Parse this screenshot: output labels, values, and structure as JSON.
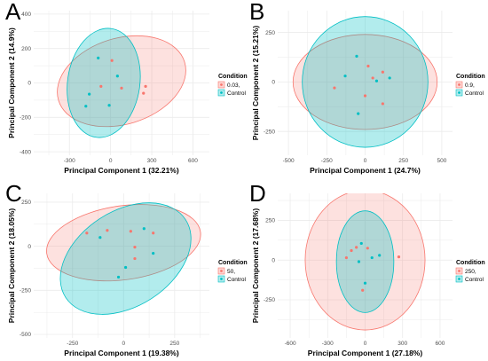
{
  "colors": {
    "treatment": "#F8766D",
    "control": "#00BFC4",
    "grid": "#ebebeb",
    "text": "#4d4d4d"
  },
  "chart_data": [
    {
      "panel": "A",
      "type": "scatter",
      "xlabel": "Principal Component 1 (32.21%)",
      "ylabel": "Principal Component 2 (14.9%)",
      "xlim": [
        -560,
        720
      ],
      "ylim": [
        -420,
        420
      ],
      "xticks": [
        -300,
        0,
        300,
        600
      ],
      "yticks": [
        -400,
        -200,
        0,
        200,
        400
      ],
      "legend": {
        "title": "Condition",
        "placement": "right",
        "labels": [
          "0.03,",
          "Control"
        ]
      },
      "series": [
        {
          "group": "treatment",
          "points": [
            [
              10,
              130
            ],
            [
              80,
              -30
            ],
            [
              -70,
              -20
            ],
            [
              240,
              -60
            ],
            [
              255,
              -20
            ]
          ],
          "ellipse": {
            "cx": 80,
            "cy": 10,
            "rx": 480,
            "ry": 250,
            "angle": -17
          }
        },
        {
          "group": "control",
          "points": [
            [
              -90,
              145
            ],
            [
              50,
              40
            ],
            [
              -155,
              -65
            ],
            [
              -180,
              -135
            ],
            [
              -10,
              -130
            ]
          ],
          "ellipse": {
            "cx": -50,
            "cy": 0,
            "rx": 400,
            "ry": 210,
            "angle": -82
          }
        }
      ]
    },
    {
      "panel": "B",
      "type": "scatter",
      "xlabel": "Principal Component 1 (24.7%)",
      "ylabel": "Principal Component 2 (15.21%)",
      "xlim": [
        -570,
        570
      ],
      "ylim": [
        -370,
        360
      ],
      "xticks": [
        -500,
        -250,
        0,
        250,
        500
      ],
      "yticks": [
        -250,
        0,
        250
      ],
      "legend": {
        "title": "Condition",
        "placement": "right",
        "labels": [
          "0.9,",
          "Control"
        ]
      },
      "series": [
        {
          "group": "treatment",
          "points": [
            [
              20,
              80
            ],
            [
              115,
              50
            ],
            [
              -200,
              -30
            ],
            [
              0,
              -70
            ],
            [
              115,
              -110
            ],
            [
              50,
              20
            ]
          ],
          "ellipse": {
            "cx": 0,
            "cy": 0,
            "rx": 470,
            "ry": 240,
            "angle": 0
          }
        },
        {
          "group": "control",
          "points": [
            [
              -55,
              130
            ],
            [
              -130,
              30
            ],
            [
              75,
              5
            ],
            [
              160,
              20
            ],
            [
              -45,
              -160
            ]
          ],
          "ellipse": {
            "cx": 0,
            "cy": 0,
            "rx": 410,
            "ry": 330,
            "angle": 0
          }
        }
      ]
    },
    {
      "panel": "C",
      "type": "scatter",
      "xlabel": "Principal Component 1 (19.38%)",
      "ylabel": "Principal Component 2 (18.05%)",
      "xlim": [
        -440,
        420
      ],
      "ylim": [
        -520,
        300
      ],
      "xticks": [
        -250,
        0,
        250
      ],
      "yticks": [
        -500,
        -250,
        0,
        250
      ],
      "legend": {
        "title": "Condition",
        "placement": "right",
        "labels": [
          "50,",
          "Control"
        ]
      },
      "series": [
        {
          "group": "treatment",
          "points": [
            [
              -180,
              75
            ],
            [
              -80,
              90
            ],
            [
              55,
              -5
            ],
            [
              145,
              75
            ],
            [
              55,
              -70
            ],
            [
              35,
              85
            ]
          ],
          "ellipse": {
            "cx": 0,
            "cy": 20,
            "rx": 380,
            "ry": 210,
            "angle": -8
          }
        },
        {
          "group": "control",
          "points": [
            [
              -115,
              50
            ],
            [
              100,
              100
            ],
            [
              145,
              -40
            ],
            [
              10,
              -120
            ],
            [
              -25,
              -175
            ]
          ],
          "ellipse": {
            "cx": 10,
            "cy": -70,
            "rx": 350,
            "ry": 270,
            "angle": -33
          }
        }
      ]
    },
    {
      "panel": "D",
      "type": "scatter",
      "xlabel": "Principal Component 1 (27.18%)",
      "ylabel": "Principal Component 2 (17.68%)",
      "xlim": [
        -700,
        700
      ],
      "ylim": [
        -490,
        420
      ],
      "xticks": [
        -600,
        -300,
        0,
        300,
        600
      ],
      "yticks": [
        -250,
        0,
        250
      ],
      "legend": {
        "title": "Condition",
        "placement": "right",
        "labels": [
          "250,",
          "Control"
        ]
      },
      "series": [
        {
          "group": "treatment",
          "points": [
            [
              -110,
              60
            ],
            [
              -70,
              80
            ],
            [
              20,
              75
            ],
            [
              270,
              20
            ],
            [
              -150,
              15
            ],
            [
              -20,
              -190
            ]
          ],
          "ellipse": {
            "cx": 0,
            "cy": 0,
            "rx": 480,
            "ry": 440,
            "angle": 0
          }
        },
        {
          "group": "control",
          "points": [
            [
              -30,
              105
            ],
            [
              -50,
              -10
            ],
            [
              55,
              15
            ],
            [
              115,
              30
            ],
            [
              0,
              -145
            ]
          ],
          "ellipse": {
            "cx": 0,
            "cy": -10,
            "rx": 230,
            "ry": 320,
            "angle": 0
          }
        }
      ]
    }
  ]
}
